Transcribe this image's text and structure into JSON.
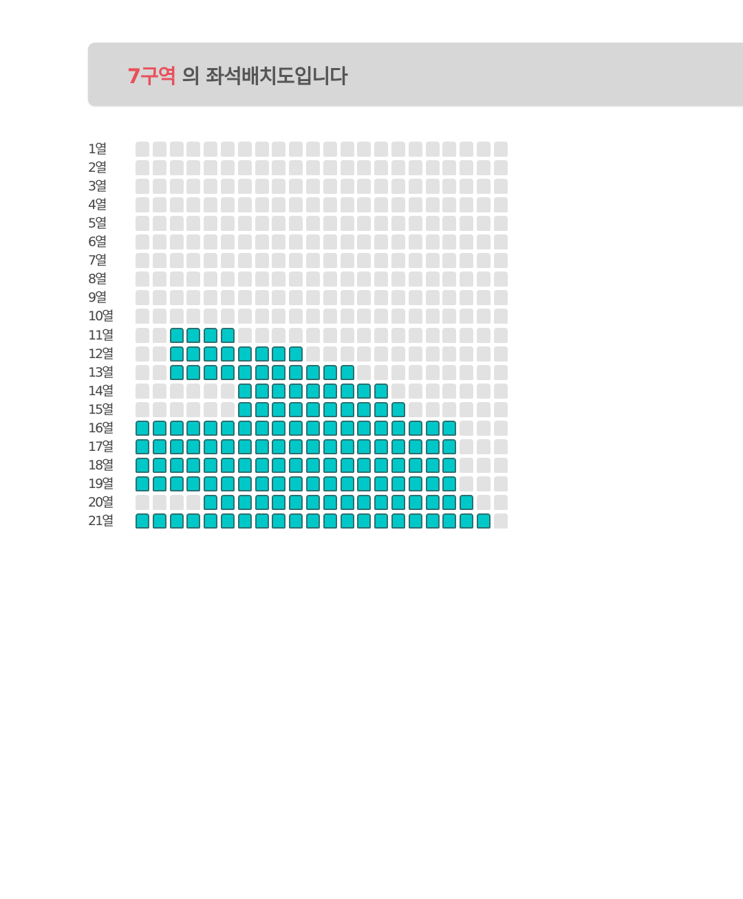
{
  "header": {
    "zone": "7구역",
    "suffix": " 의 좌석배치도입니다"
  },
  "colors": {
    "available": "#00c8c8",
    "unavailable": "#e2e2e2",
    "zone_text": "#e8505b"
  },
  "seat_map": {
    "columns": 22,
    "rows": [
      {
        "label": "1열",
        "available": []
      },
      {
        "label": "2열",
        "available": []
      },
      {
        "label": "3열",
        "available": []
      },
      {
        "label": "4열",
        "available": []
      },
      {
        "label": "5열",
        "available": []
      },
      {
        "label": "6열",
        "available": []
      },
      {
        "label": "7열",
        "available": []
      },
      {
        "label": "8열",
        "available": []
      },
      {
        "label": "9열",
        "available": []
      },
      {
        "label": "10열",
        "available": []
      },
      {
        "label": "11열",
        "available": [
          [
            3,
            6
          ]
        ]
      },
      {
        "label": "12열",
        "available": [
          [
            3,
            10
          ]
        ]
      },
      {
        "label": "13열",
        "available": [
          [
            3,
            13
          ]
        ]
      },
      {
        "label": "14열",
        "available": [
          [
            7,
            15
          ]
        ]
      },
      {
        "label": "15열",
        "available": [
          [
            7,
            16
          ]
        ]
      },
      {
        "label": "16열",
        "available": [
          [
            1,
            19
          ]
        ]
      },
      {
        "label": "17열",
        "available": [
          [
            1,
            19
          ]
        ]
      },
      {
        "label": "18열",
        "available": [
          [
            1,
            19
          ]
        ]
      },
      {
        "label": "19열",
        "available": [
          [
            1,
            19
          ]
        ]
      },
      {
        "label": "20열",
        "available": [
          [
            5,
            20
          ]
        ]
      },
      {
        "label": "21열",
        "available": [
          [
            1,
            21
          ]
        ]
      }
    ]
  }
}
